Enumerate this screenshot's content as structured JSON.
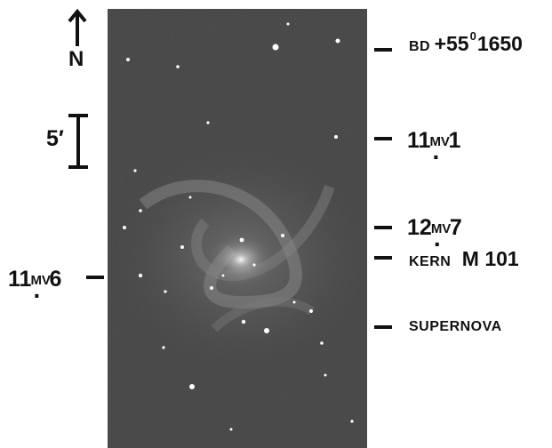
{
  "compass": {
    "north_label": "N"
  },
  "scale": {
    "label": "5′"
  },
  "labels": {
    "bd_star": {
      "prefix": "BD",
      "value": "+55",
      "degree": "0",
      "number": "1650"
    },
    "star_mag1": {
      "whole": "11",
      "sup": "MV",
      "dot": ".",
      "frac": "1"
    },
    "star_mag2": {
      "whole": "12",
      "sup": "MV",
      "dot": ".",
      "frac": "7"
    },
    "kern": {
      "word": "KERN",
      "name": "M 101"
    },
    "left_star": {
      "whole": "11",
      "sup": "MV",
      "dot": ".",
      "frac": "6"
    },
    "supernova": "SUPERNOVA"
  },
  "colors": {
    "ink": "#111111",
    "photo_bg": "#4a4a4a"
  }
}
